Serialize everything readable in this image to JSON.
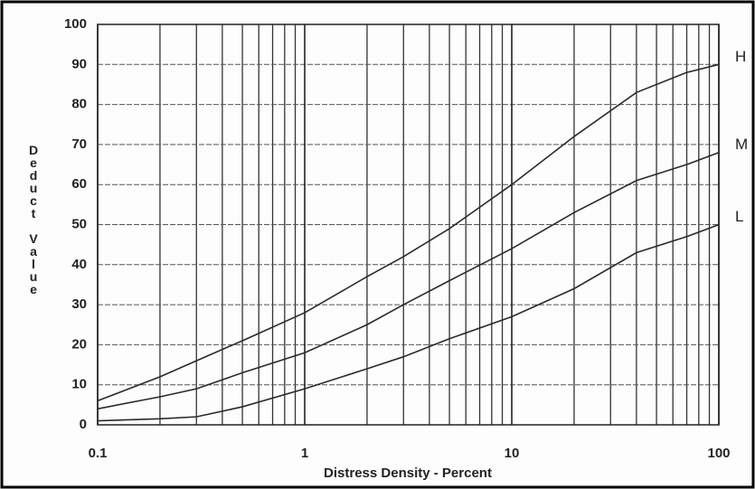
{
  "chart_data": {
    "type": "line",
    "xlabel": "Distress Density - Percent",
    "ylabel": "Deduct Value",
    "xscale": "log",
    "x": [
      0.1,
      0.2,
      0.3,
      0.5,
      1,
      2,
      3,
      5,
      10,
      20,
      40,
      70,
      100
    ],
    "series": [
      {
        "name": "H",
        "color": "#2a2a2a",
        "values": [
          6,
          12,
          16,
          21,
          28,
          37,
          42,
          49,
          60,
          72,
          83,
          88,
          90
        ]
      },
      {
        "name": "M",
        "color": "#2a2a2a",
        "values": [
          4,
          7,
          9,
          13,
          18,
          25,
          30,
          36,
          44,
          53,
          61,
          65,
          68
        ]
      },
      {
        "name": "L",
        "color": "#2a2a2a",
        "values": [
          1,
          1.5,
          2,
          4.5,
          9,
          14,
          17,
          21.5,
          27,
          34,
          43,
          47,
          50
        ]
      }
    ],
    "xlim": [
      0.1,
      100
    ],
    "xticks": [
      0.1,
      1,
      10,
      100
    ],
    "ylim": [
      0,
      100
    ],
    "yticks": [
      0,
      10,
      20,
      30,
      40,
      50,
      60,
      70,
      80,
      90,
      100
    ],
    "grid": true
  }
}
